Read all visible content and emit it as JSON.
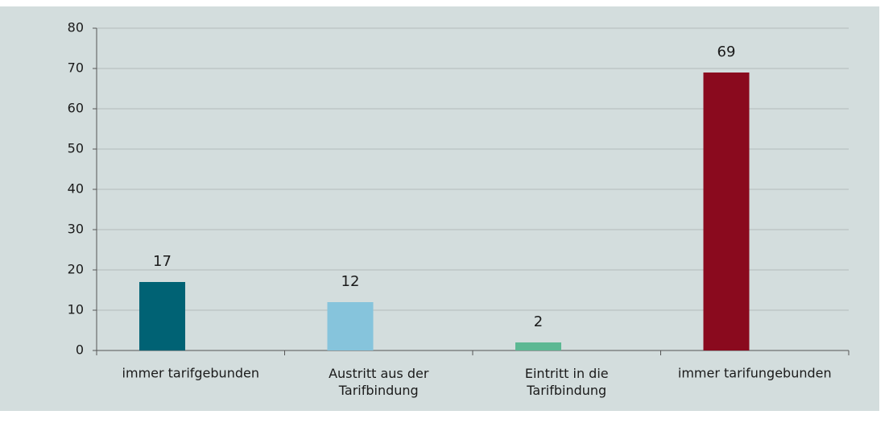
{
  "chart_data": {
    "type": "bar",
    "categories": [
      "immer tarifgebunden",
      "Austritt aus der\nTarifbindung",
      "Eintritt in die\nTarifbindung",
      "immer tarifungebunden"
    ],
    "values": [
      17,
      12,
      2,
      69
    ],
    "colors": [
      "#006274",
      "#86c4dc",
      "#5cb893",
      "#8a0a1e"
    ],
    "ylim": [
      0,
      80
    ],
    "yticks": [
      0,
      10,
      20,
      30,
      40,
      50,
      60,
      70,
      80
    ],
    "grid": true
  }
}
